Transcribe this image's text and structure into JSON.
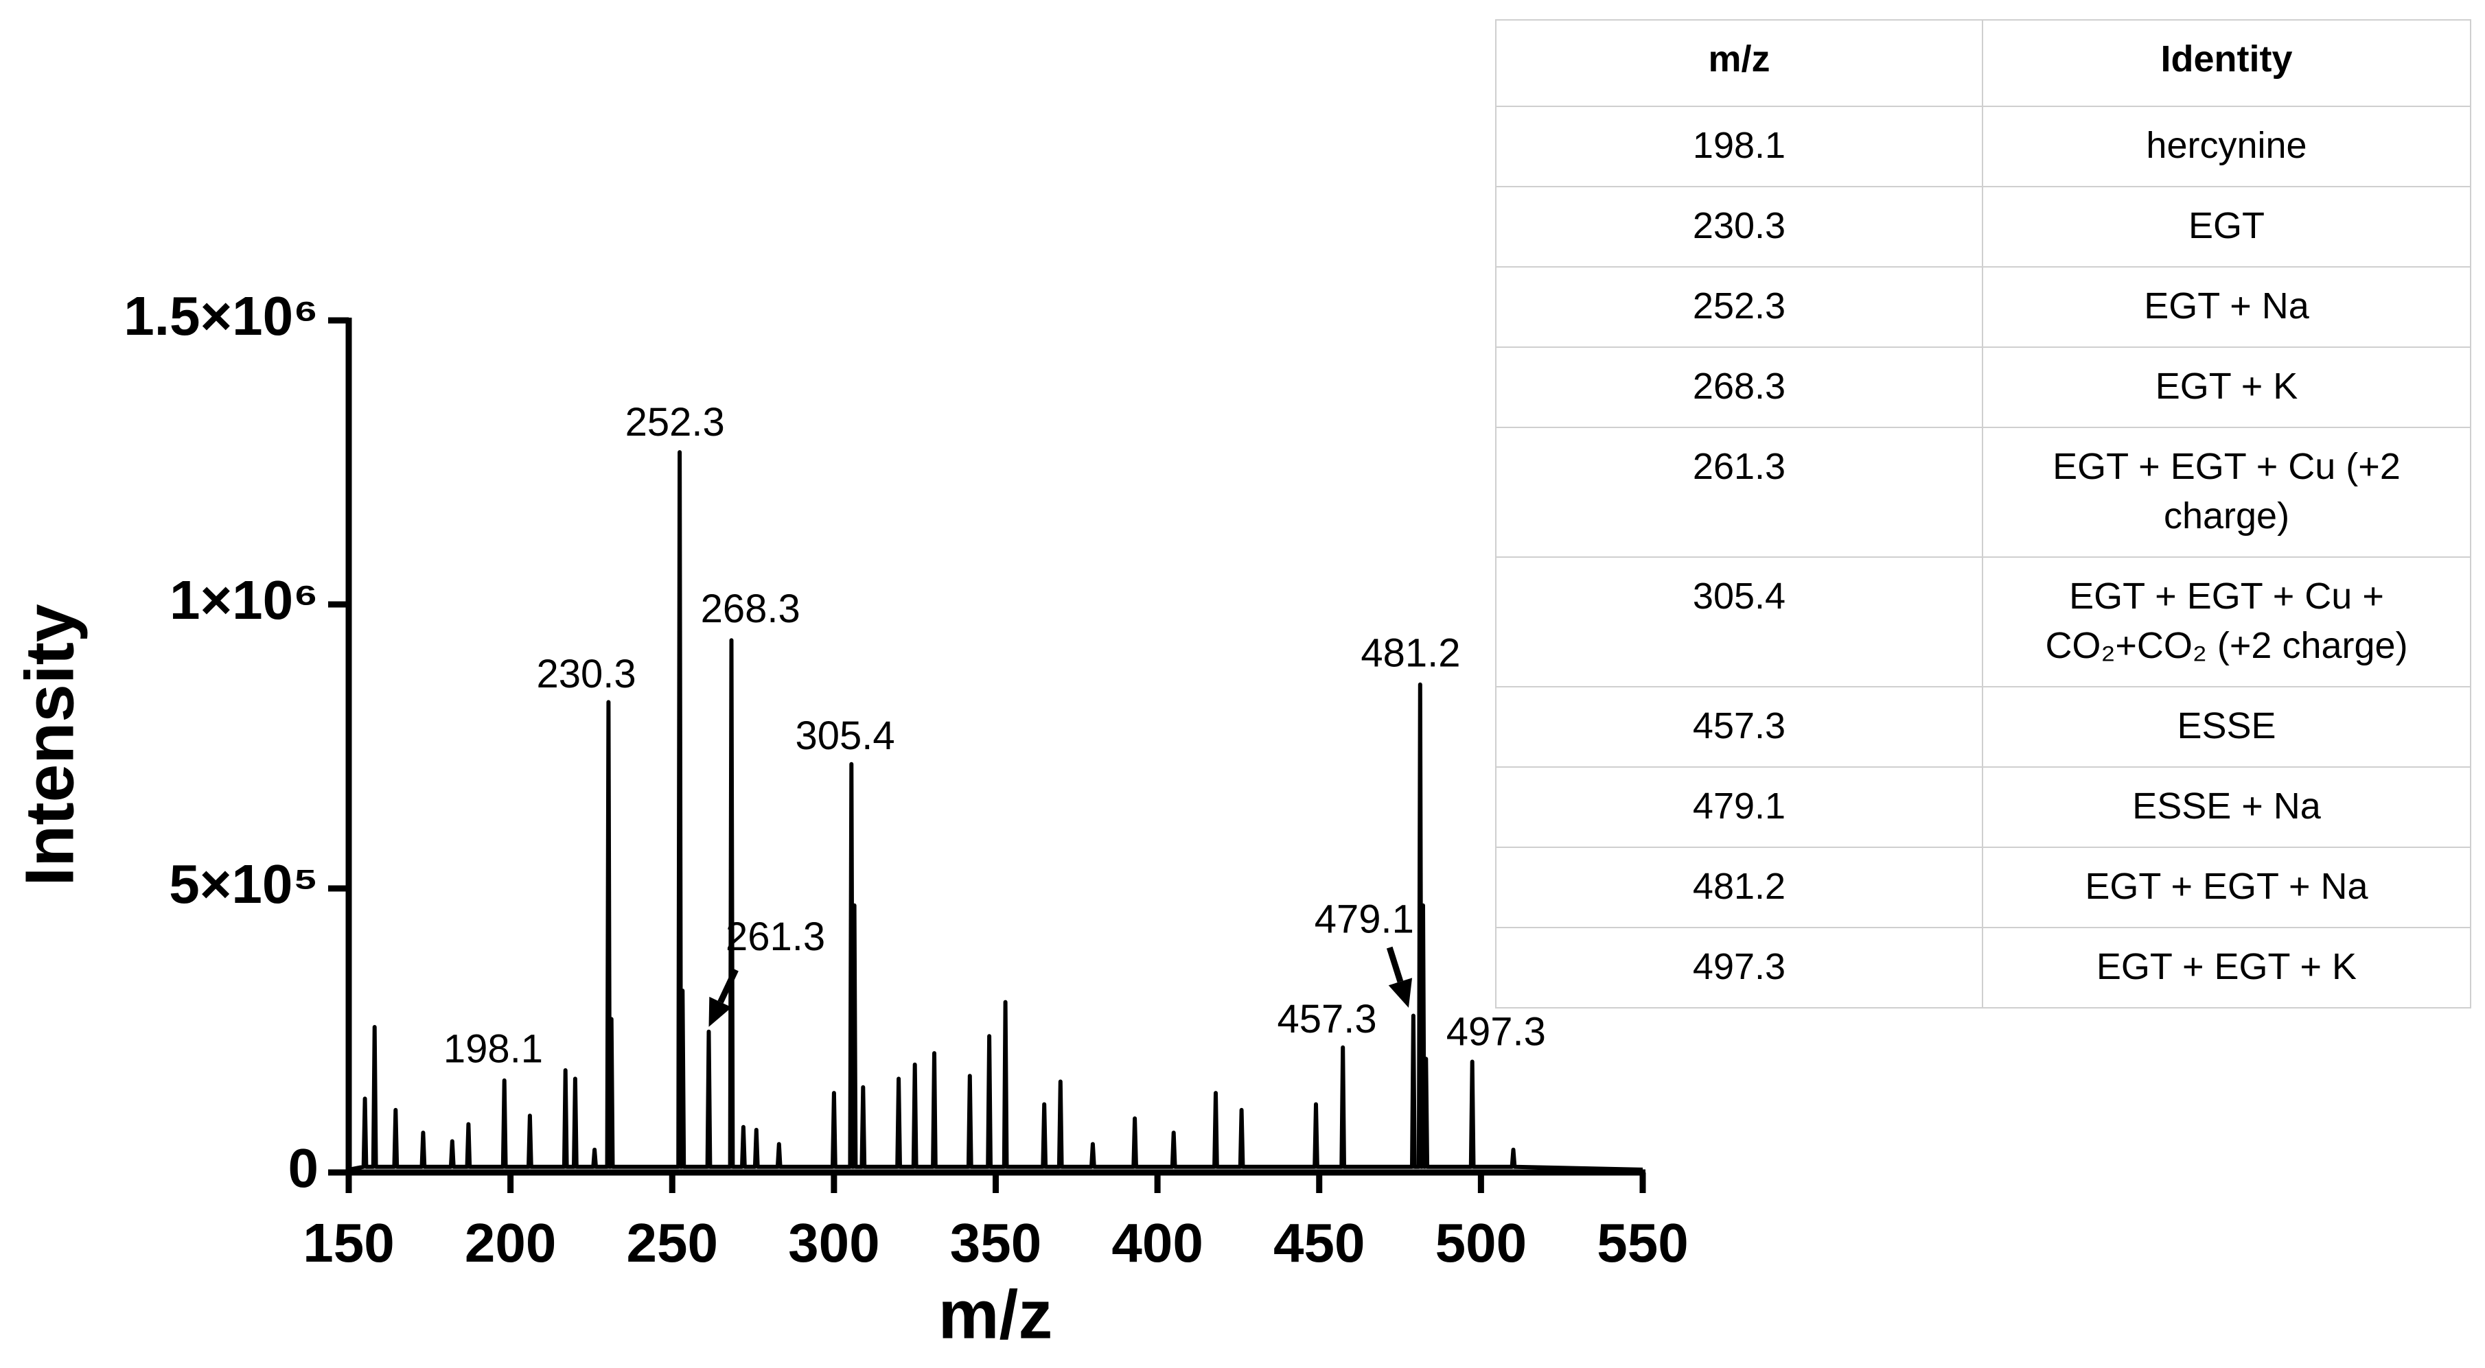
{
  "chart_data": {
    "type": "line",
    "color": "#000000",
    "x_label": "m/z",
    "y_label": "Intensity",
    "xlim": [
      150,
      550
    ],
    "xticks": [
      150,
      200,
      250,
      300,
      350,
      400,
      450,
      500,
      550
    ],
    "ylim": [
      0,
      1500000
    ],
    "yticks": [
      0,
      {
        "value": 500000,
        "label": "5×10⁵"
      },
      {
        "value": 1000000,
        "label": "1×10⁶"
      },
      {
        "value": 1500000,
        "label": "1.5×10⁶"
      }
    ],
    "x": [
      150,
      154.6,
      155,
      155.4,
      157.6,
      158,
      158.4,
      164.1,
      164.5,
      164.9,
      172.6,
      173,
      173.4,
      181.6,
      182,
      182.4,
      186.6,
      187,
      187.4,
      197.7,
      198.1,
      198.5,
      205.6,
      206,
      206.4,
      216.6,
      217,
      217.4,
      219.6,
      220,
      220.4,
      225.6,
      226,
      226.4,
      229.9,
      230.3,
      230.7,
      230.8,
      231.2,
      231.6,
      251.9,
      252.3,
      252.7,
      252.8,
      253.2,
      253.6,
      260.9,
      261.3,
      261.7,
      267.9,
      268.3,
      268.7,
      271.6,
      272,
      272.4,
      275.6,
      276,
      276.4,
      282.6,
      283,
      283.4,
      299.6,
      300,
      300.4,
      305,
      305.4,
      305.8,
      305.9,
      306.3,
      306.7,
      308.6,
      309,
      309.4,
      319.6,
      320,
      320.4,
      324.6,
      325,
      325.4,
      330.6,
      331,
      331.4,
      341.6,
      342,
      342.4,
      347.6,
      348,
      348.4,
      352.6,
      353,
      353.4,
      364.6,
      365,
      365.4,
      369.6,
      370,
      370.4,
      379.6,
      380,
      380.4,
      392.6,
      393,
      393.4,
      404.6,
      405,
      405.4,
      417.6,
      418,
      418.4,
      425.6,
      426,
      426.4,
      448.6,
      449,
      449.4,
      456.9,
      457.3,
      457.7,
      478.7,
      479.1,
      479.5,
      480.8,
      481.2,
      481.6,
      481.7,
      482.1,
      482.5,
      482.6,
      483,
      483.4,
      496.9,
      497.3,
      497.7,
      509.6,
      510,
      510.4,
      550
    ],
    "values": [
      5000,
      10000,
      130000,
      10000,
      10000,
      256000,
      10000,
      10000,
      110000,
      10000,
      10000,
      70000,
      10000,
      10000,
      55000,
      10000,
      10000,
      85000,
      10000,
      10000,
      162000,
      10000,
      10000,
      100000,
      10000,
      10000,
      180000,
      10000,
      10000,
      165000,
      10000,
      10000,
      40000,
      10000,
      10000,
      828000,
      10000,
      10000,
      270000,
      10000,
      10000,
      1268000,
      10000,
      10000,
      320000,
      10000,
      10000,
      248000,
      10000,
      10000,
      937000,
      10000,
      10000,
      80000,
      10000,
      10000,
      75000,
      10000,
      10000,
      50000,
      10000,
      10000,
      140000,
      10000,
      10000,
      719000,
      10000,
      10000,
      470000,
      10000,
      10000,
      150000,
      10000,
      10000,
      165000,
      10000,
      10000,
      190000,
      10000,
      10000,
      210000,
      10000,
      10000,
      170000,
      10000,
      10000,
      240000,
      10000,
      10000,
      300000,
      10000,
      10000,
      120000,
      10000,
      10000,
      160000,
      10000,
      10000,
      50000,
      10000,
      10000,
      95000,
      10000,
      10000,
      70000,
      10000,
      10000,
      140000,
      10000,
      10000,
      110000,
      10000,
      10000,
      120000,
      10000,
      10000,
      220000,
      10000,
      10000,
      276000,
      10000,
      10000,
      859000,
      10000,
      10000,
      470000,
      10000,
      10000,
      200000,
      10000,
      10000,
      195000,
      10000,
      10000,
      40000,
      10000,
      5000
    ],
    "annotations": [
      "198.1",
      "230.3",
      "252.3",
      "268.3",
      "261.3",
      "305.4",
      "481.2",
      "479.1",
      "457.3",
      "497.3"
    ]
  },
  "table": {
    "header": [
      "m/z",
      "Identity"
    ],
    "rows": [
      [
        "198.1",
        "hercynine"
      ],
      [
        "230.3",
        "EGT"
      ],
      [
        "252.3",
        "EGT + Na"
      ],
      [
        "268.3",
        "EGT + K"
      ],
      [
        "261.3",
        "EGT + EGT + Cu (+2 charge)"
      ],
      [
        "305.4",
        "EGT + EGT + Cu + CO₂+CO₂ (+2 charge)"
      ],
      [
        "457.3",
        "ESSE"
      ],
      [
        "479.1",
        "ESSE + Na"
      ],
      [
        "481.2",
        "EGT + EGT + Na"
      ],
      [
        "497.3",
        "EGT + EGT + K"
      ]
    ]
  }
}
